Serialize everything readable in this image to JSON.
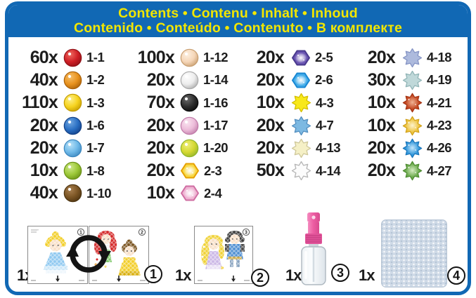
{
  "header": {
    "line1": "Contents • Contenu • Inhalt • Inhoud",
    "line2": "Contenido • Conteúdo • Contenuto • В комплекте"
  },
  "colors": {
    "header_bg": "#1168b4",
    "header_text": "#f2e600",
    "border": "#1168b4",
    "body_text": "#1d1d1d"
  },
  "bead_columns": [
    {
      "items": [
        {
          "count": "60x",
          "code": "1-1",
          "shape": "ball",
          "colors": {
            "main": "#cf1f26",
            "dark": "#8f1016",
            "light": "#ef6a60"
          }
        },
        {
          "count": "40x",
          "code": "1-2",
          "shape": "ball",
          "colors": {
            "main": "#e8921e",
            "dark": "#a85f08",
            "light": "#f6bf6a"
          }
        },
        {
          "count": "110x",
          "code": "1-3",
          "shape": "ball",
          "colors": {
            "main": "#f6d31f",
            "dark": "#c29a00",
            "light": "#fdf08a"
          }
        },
        {
          "count": "20x",
          "code": "1-6",
          "shape": "ball",
          "colors": {
            "main": "#2a6fc3",
            "dark": "#123f85",
            "light": "#6fa6e0"
          }
        },
        {
          "count": "20x",
          "code": "1-7",
          "shape": "ball",
          "colors": {
            "main": "#6fb9e8",
            "dark": "#3a85bd",
            "light": "#b8e2f8"
          }
        },
        {
          "count": "10x",
          "code": "1-8",
          "shape": "ball",
          "colors": {
            "main": "#9cc838",
            "dark": "#688f15",
            "light": "#cfe88a"
          }
        },
        {
          "count": "40x",
          "code": "1-10",
          "shape": "ball",
          "colors": {
            "main": "#7b5524",
            "dark": "#4c3310",
            "light": "#a98050"
          }
        }
      ]
    },
    {
      "items": [
        {
          "count": "100x",
          "code": "1-12",
          "shape": "ball",
          "colors": {
            "main": "#f5d6b8",
            "dark": "#c69c6d",
            "light": "#fdf0e0"
          }
        },
        {
          "count": "20x",
          "code": "1-14",
          "shape": "ball",
          "colors": {
            "main": "#ececec",
            "dark": "#a9a9a9",
            "light": "#ffffff"
          }
        },
        {
          "count": "70x",
          "code": "1-16",
          "shape": "ball",
          "colors": {
            "main": "#2e2e2e",
            "dark": "#0a0a0a",
            "light": "#6a6a6a"
          }
        },
        {
          "count": "20x",
          "code": "1-17",
          "shape": "ball",
          "colors": {
            "main": "#ecbcd9",
            "dark": "#bf7aa8",
            "light": "#fae4f0"
          }
        },
        {
          "count": "20x",
          "code": "1-20",
          "shape": "ball",
          "colors": {
            "main": "#d4d831",
            "dark": "#8fb32a",
            "light": "#efef7a"
          }
        },
        {
          "count": "20x",
          "code": "2-3",
          "shape": "hex",
          "colors": {
            "fill": "#f8d844",
            "border": "#e6a000"
          }
        },
        {
          "count": "10x",
          "code": "2-4",
          "shape": "hex",
          "colors": {
            "fill": "#efb3d2",
            "border": "#cf6da2"
          }
        }
      ]
    },
    {
      "items": [
        {
          "count": "20x",
          "code": "2-5",
          "shape": "hex",
          "colors": {
            "fill": "#6a55b2",
            "border": "#48398c"
          }
        },
        {
          "count": "20x",
          "code": "2-6",
          "shape": "hex",
          "colors": {
            "fill": "#44adea",
            "border": "#1786d2"
          }
        },
        {
          "count": "10x",
          "code": "4-3",
          "shape": "star",
          "colors": {
            "fill": "#f8e81a",
            "border": "#d4bf00"
          }
        },
        {
          "count": "20x",
          "code": "4-7",
          "shape": "star",
          "colors": {
            "fill": "#7db9e2",
            "border": "#5590c0"
          }
        },
        {
          "count": "20x",
          "code": "4-13",
          "shape": "star",
          "colors": {
            "fill": "#f5f0c6",
            "border": "#cfc89a"
          }
        },
        {
          "count": "50x",
          "code": "4-14",
          "shape": "star",
          "colors": {
            "fill": "#fcfcfc",
            "border": "#b5b5b5"
          }
        }
      ]
    },
    {
      "items": [
        {
          "count": "20x",
          "code": "4-18",
          "shape": "star",
          "colors": {
            "fill": "#adbadd",
            "border": "#8695c5"
          }
        },
        {
          "count": "30x",
          "code": "4-19",
          "shape": "star",
          "colors": {
            "fill": "#bfd8d9",
            "border": "#92b5b7"
          }
        },
        {
          "count": "10x",
          "code": "4-21",
          "shape": "star-glow",
          "colors": {
            "edge": "#c2441e",
            "center": "#f0b394",
            "border": "#a33312"
          }
        },
        {
          "count": "10x",
          "code": "4-23",
          "shape": "star-glow",
          "colors": {
            "edge": "#edc23a",
            "center": "#fdf3cf",
            "border": "#cf9f18"
          }
        },
        {
          "count": "20x",
          "code": "4-26",
          "shape": "star-glow",
          "colors": {
            "edge": "#2e95da",
            "center": "#c6e7fb",
            "border": "#1a74b8"
          }
        },
        {
          "count": "20x",
          "code": "4-27",
          "shape": "star-glow",
          "colors": {
            "edge": "#69a94a",
            "center": "#d6ecc3",
            "border": "#4c8a30"
          }
        }
      ]
    }
  ],
  "bottom_items": [
    {
      "count": "1x",
      "number": "1",
      "sheet_corner_numbers": [
        "1",
        "2"
      ]
    },
    {
      "count": "1x",
      "number": "2",
      "sheet_corner_numbers": [
        "3"
      ]
    },
    {
      "count": "1x",
      "number": "3"
    },
    {
      "count": "1x",
      "number": "4"
    }
  ]
}
